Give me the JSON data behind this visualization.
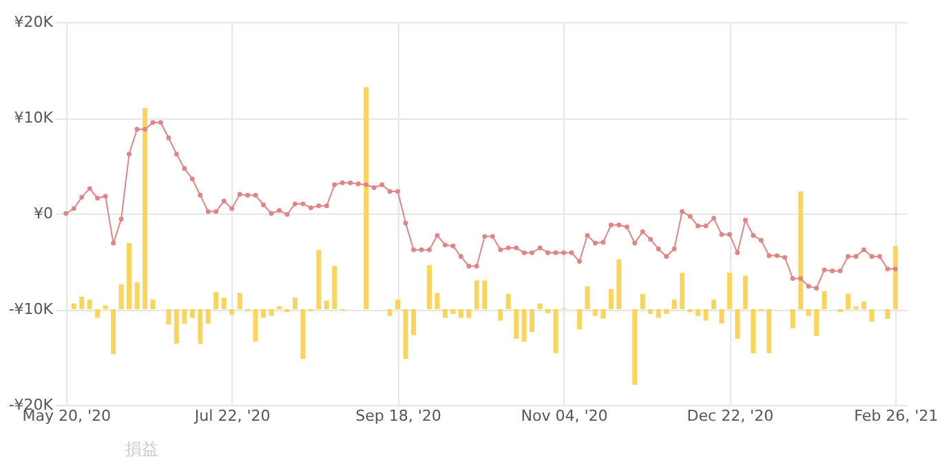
{
  "chart_data": {
    "type": "line",
    "categories": [
      "May 20, '20",
      null,
      null,
      null,
      null,
      null,
      null,
      null,
      null,
      null,
      null,
      null,
      null,
      null,
      null,
      null,
      null,
      null,
      null,
      null,
      null,
      "Jul 22, '20",
      null,
      null,
      null,
      null,
      null,
      null,
      null,
      null,
      null,
      null,
      null,
      null,
      null,
      null,
      null,
      null,
      null,
      null,
      null,
      null,
      "Sep 18, '20",
      null,
      null,
      null,
      null,
      null,
      null,
      null,
      null,
      null,
      null,
      null,
      null,
      null,
      null,
      null,
      null,
      null,
      null,
      null,
      null,
      "Nov 04, '20",
      null,
      null,
      null,
      null,
      null,
      null,
      null,
      null,
      null,
      null,
      null,
      null,
      null,
      null,
      null,
      null,
      null,
      null,
      null,
      null,
      "Dec 22, '20",
      null,
      null,
      null,
      null,
      null,
      null,
      null,
      null,
      null,
      null,
      null,
      null,
      null,
      null,
      null,
      null,
      null,
      null,
      null,
      null,
      "Feb 26, '21"
    ],
    "series": [
      {
        "type": "bar",
        "color": "#fbd45c",
        "base": [
          null,
          -10000,
          -10000,
          -10000,
          -10000,
          -10000,
          -10000,
          -10000,
          -10000,
          -10000,
          -10000,
          -10000,
          null,
          -10000,
          -10000,
          -10000,
          -10000,
          -10000,
          -10000,
          -10000,
          -10000,
          -10000,
          -10000,
          -10000,
          -10000,
          -10000,
          -10000,
          -10000,
          -10000,
          -10000,
          -10000,
          -10000,
          -10000,
          -10000,
          -10000,
          -10000,
          null,
          null,
          -10000,
          null,
          null,
          -10000,
          -10000,
          -10000,
          -10000,
          null,
          -10000,
          -10000,
          -10000,
          -10000,
          -10000,
          -10000,
          -10000,
          -10000,
          null,
          -10000,
          -10000,
          -10000,
          -10000,
          -10000,
          -10000,
          -10000,
          -10000,
          -10000,
          null,
          -10000,
          -10000,
          -10000,
          -10000,
          -10000,
          -10000,
          null,
          -10000,
          -10000,
          -10000,
          -10000,
          -10000,
          -10000,
          -10000,
          -10000,
          -10000,
          -10000,
          -10000,
          -10000,
          -10000,
          -10000,
          -10000,
          -10000,
          -10000,
          -10000,
          null,
          null,
          -10000,
          -10000,
          -10000,
          -10000,
          -10000,
          null,
          -10000,
          -10000,
          -10000,
          -10000,
          -10000,
          null,
          -10000,
          -10000
        ],
        "values": [
          null,
          600,
          1300,
          1000,
          -900,
          400,
          -4700,
          2600,
          6900,
          2800,
          21000,
          1000,
          null,
          -1600,
          -3600,
          -1500,
          -900,
          -3600,
          -1500,
          1800,
          1200,
          -600,
          1700,
          -200,
          -3400,
          -900,
          -700,
          300,
          -300,
          1200,
          -5200,
          -200,
          6200,
          900,
          4500,
          -100,
          null,
          null,
          23200,
          null,
          null,
          -700,
          1000,
          -5200,
          -2700,
          null,
          4600,
          1700,
          -900,
          -500,
          -900,
          -900,
          3000,
          3000,
          null,
          -1200,
          1600,
          -3100,
          -3400,
          -2400,
          600,
          -400,
          -4600,
          100,
          null,
          -2100,
          2400,
          -700,
          -1000,
          2100,
          5200,
          null,
          -7900,
          1600,
          -500,
          -900,
          -500,
          1000,
          3800,
          -300,
          -700,
          -1200,
          1000,
          -1500,
          3800,
          -3100,
          3500,
          -4600,
          -200,
          -4600,
          null,
          null,
          -2000,
          12300,
          -700,
          -2800,
          1900,
          null,
          -300,
          1600,
          300,
          800,
          -1300,
          null,
          -1000,
          6600
        ]
      },
      {
        "color": "#e08585",
        "marker": "circle",
        "values": [
          0,
          500,
          1700,
          2600,
          1600,
          1800,
          -3100,
          -600,
          6200,
          8800,
          8800,
          9500,
          9500,
          7900,
          6200,
          4700,
          3600,
          1900,
          200,
          200,
          1300,
          500,
          2000,
          1900,
          1900,
          900,
          0,
          300,
          -100,
          1000,
          1000,
          600,
          800,
          800,
          3000,
          3200,
          3200,
          3100,
          3000,
          2700,
          3000,
          2300,
          2300,
          -1000,
          -3800,
          -3800,
          -3800,
          -2300,
          -3300,
          -3400,
          -4500,
          -5500,
          -5500,
          -2400,
          -2400,
          -3800,
          -3600,
          -3600,
          -4100,
          -4100,
          -3600,
          -4100,
          -4100,
          -4100,
          -4100,
          -5000,
          -2300,
          -3100,
          -3000,
          -1200,
          -1200,
          -1400,
          -3100,
          -1900,
          -2700,
          -3700,
          -4500,
          -3700,
          200,
          -300,
          -1300,
          -1300,
          -500,
          -2200,
          -2200,
          -4100,
          -700,
          -2300,
          -2800,
          -4400,
          -4400,
          -4600,
          -6800,
          -6800,
          -7600,
          -7800,
          -5900,
          -6000,
          -6000,
          -4500,
          -4500,
          -3800,
          -4500,
          -4500,
          -5800,
          -5800
        ]
      }
    ],
    "ylim": [
      -20000,
      20000
    ],
    "yticks": [
      {
        "value": -20000,
        "label": "-¥20K"
      },
      {
        "value": -10000,
        "label": "-¥10K"
      },
      {
        "value": 0,
        "label": "¥0"
      },
      {
        "value": 10000,
        "label": "¥10K"
      },
      {
        "value": 20000,
        "label": "¥20K"
      }
    ],
    "grid": true,
    "annotations": [
      "損益"
    ]
  }
}
